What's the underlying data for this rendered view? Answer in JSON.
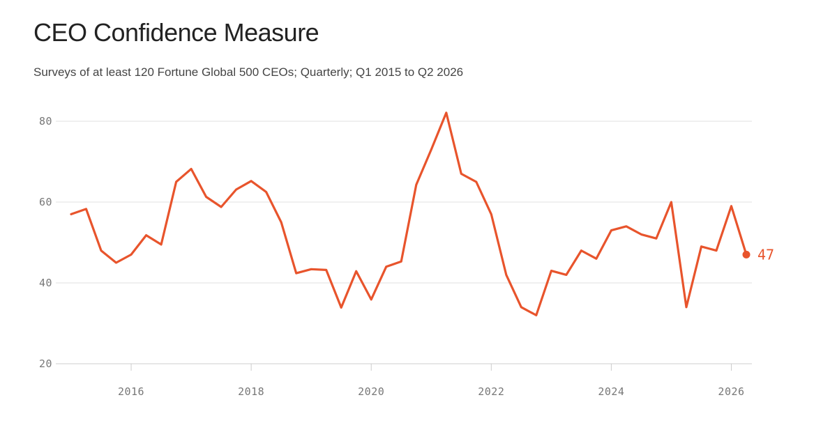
{
  "header": {
    "title": "CEO Confidence Measure",
    "subtitle": "Surveys of at least 120 Fortune Global 500 CEOs; Quarterly; Q1 2015 to Q2 2026"
  },
  "chart_data": {
    "type": "line",
    "title": "CEO Confidence Measure",
    "subtitle": "Surveys of at least 120 Fortune Global 500 CEOs; Quarterly; Q1 2015 to Q2 2026",
    "xlabel": "",
    "ylabel": "",
    "ylim": [
      20,
      80
    ],
    "y_ticks": [
      20,
      40,
      60,
      80
    ],
    "x_ticks": [
      2016,
      2018,
      2020,
      2022,
      2024,
      2026
    ],
    "grid": true,
    "line_color": "#e8542c",
    "series": [
      {
        "x": [
          "2015 Q1",
          "2015 Q2",
          "2015 Q3",
          "2015 Q4",
          "2016 Q1",
          "2016 Q2",
          "2016 Q3",
          "2016 Q4",
          "2017 Q1",
          "2017 Q2",
          "2017 Q3",
          "2017 Q4",
          "2018 Q1",
          "2018 Q2",
          "2018 Q3",
          "2018 Q4",
          "2019 Q1",
          "2019 Q2",
          "2019 Q3",
          "2019 Q4",
          "2020 Q1",
          "2020 Q2",
          "2020 Q3",
          "2020 Q4",
          "2021 Q1",
          "2021 Q2",
          "2021 Q3",
          "2021 Q4",
          "2022 Q1",
          "2022 Q2",
          "2022 Q3",
          "2022 Q4",
          "2023 Q1",
          "2023 Q2",
          "2023 Q3",
          "2023 Q4",
          "2024 Q1",
          "2024 Q2",
          "2024 Q3",
          "2024 Q4",
          "2025 Q1",
          "2025 Q2",
          "2025 Q3",
          "2025 Q4",
          "2026 Q1",
          "2026 Q2"
        ],
        "values": [
          57,
          58.3,
          48,
          45,
          47,
          51.8,
          49.5,
          65,
          68.2,
          61.3,
          58.8,
          63.1,
          65.2,
          62.5,
          55,
          42.4,
          43.4,
          43.2,
          33.9,
          42.9,
          35.9,
          44,
          45.3,
          64.3,
          73,
          82.1,
          67,
          65,
          57,
          42,
          34,
          32,
          43,
          42,
          48,
          46,
          53,
          54,
          52,
          51,
          60,
          34,
          49,
          48,
          59,
          47
        ]
      }
    ],
    "end_label": "47"
  }
}
